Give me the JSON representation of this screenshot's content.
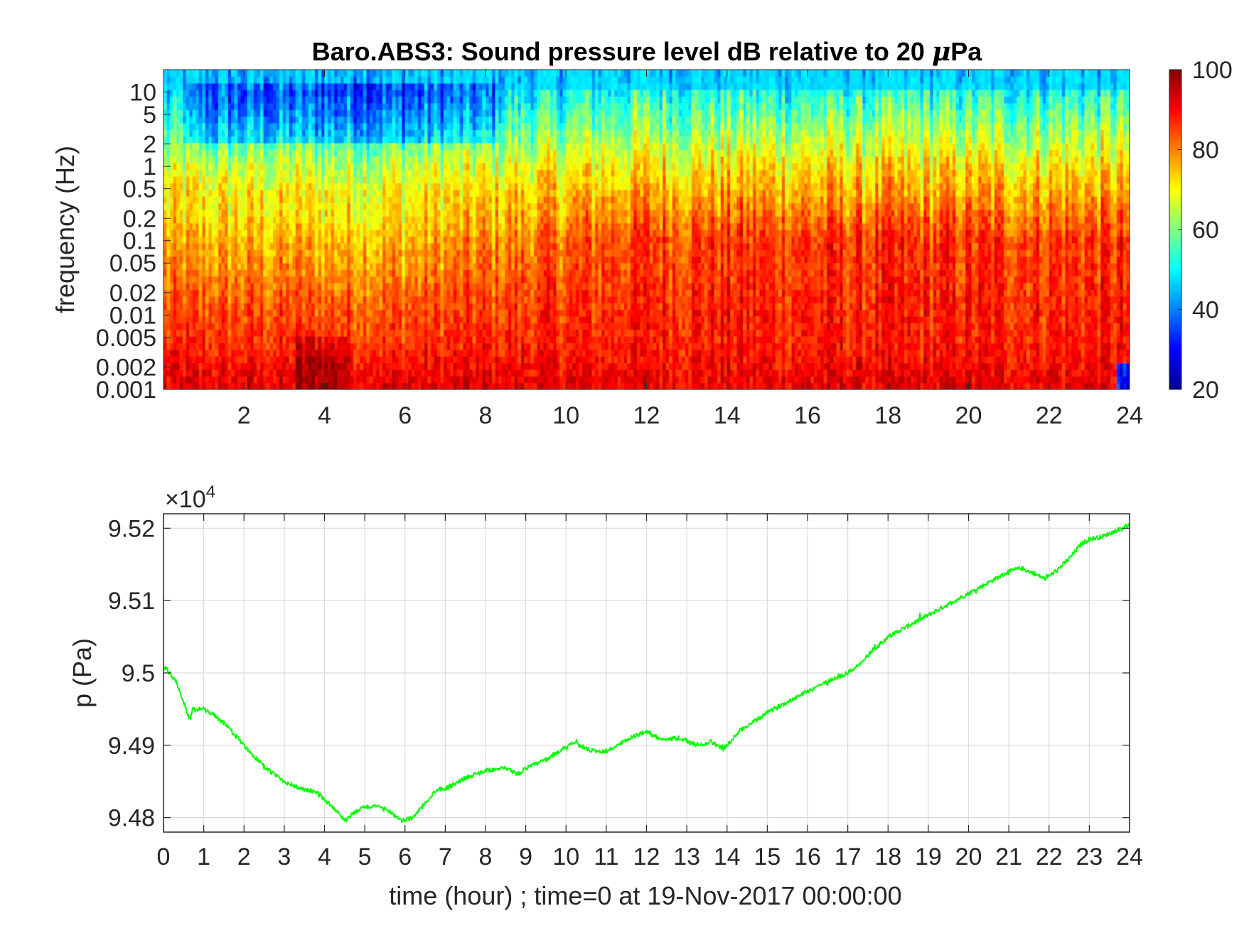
{
  "chart_data": [
    {
      "type": "heatmap",
      "title": "Baro.ABS3: Sound pressure level dB relative to 20 μPa",
      "title_main": "Baro.ABS3: Sound pressure level dB relative to 20 ",
      "title_mu": "μ",
      "title_tail": "Pa",
      "ylabel": "frequency (Hz)",
      "xlabel": "",
      "xlim": [
        0,
        24
      ],
      "ylim": [
        0.001,
        20
      ],
      "yscale": "log",
      "xticks": [
        2,
        4,
        6,
        8,
        10,
        12,
        14,
        16,
        18,
        20,
        22,
        24
      ],
      "yticks": [
        0.001,
        0.002,
        0.005,
        0.01,
        0.02,
        0.05,
        0.1,
        0.2,
        0.5,
        1,
        2,
        5,
        10
      ],
      "ytick_labels": [
        "0.001",
        "0.002",
        "0.005",
        "0.01",
        "0.02",
        "0.05",
        "0.1",
        "0.2",
        "0.5",
        "1",
        "2",
        "5",
        "10"
      ],
      "colormap": "jet",
      "clim": [
        20,
        100
      ],
      "colorbar_ticks": [
        20,
        40,
        60,
        80,
        100
      ],
      "colorbar_labels": [
        "20",
        "40",
        "60",
        "80",
        "100"
      ],
      "level_profile": {
        "frequency_hz": [
          0.001,
          0.002,
          0.005,
          0.01,
          0.02,
          0.05,
          0.1,
          0.2,
          0.5,
          1,
          2,
          5,
          10,
          20
        ],
        "typical_db_early": [
          92,
          90,
          86,
          84,
          82,
          78,
          76,
          72,
          70,
          65,
          58,
          50,
          46,
          46
        ],
        "typical_db_late": [
          92,
          90,
          88,
          88,
          87,
          86,
          86,
          82,
          76,
          72,
          66,
          58,
          52,
          48
        ]
      },
      "grid": false
    },
    {
      "type": "line",
      "title": "",
      "xlabel": "time (hour) ; time=0 at 19-Nov-2017 00:00:00",
      "ylabel": "p (Pa)",
      "xlim": [
        0,
        24
      ],
      "ylim": [
        94780,
        95220
      ],
      "xticks": [
        0,
        1,
        2,
        3,
        4,
        5,
        6,
        7,
        8,
        9,
        10,
        11,
        12,
        13,
        14,
        15,
        16,
        17,
        18,
        19,
        20,
        21,
        22,
        23,
        24
      ],
      "yticks": [
        94800,
        94900,
        95000,
        95100,
        95200
      ],
      "ytick_labels": [
        "9.48",
        "9.49",
        "9.5",
        "9.51",
        "9.52"
      ],
      "exponent_prefix": "×10",
      "exponent_power": "4",
      "grid": true,
      "series": [
        {
          "color": "#00ff00",
          "x": [
            0,
            0.3,
            0.5,
            0.65,
            0.75,
            1,
            1.3,
            1.6,
            2,
            2.5,
            3,
            3.4,
            3.8,
            4.1,
            4.3,
            4.5,
            4.7,
            5,
            5.3,
            5.6,
            5.9,
            6.2,
            6.5,
            6.8,
            7,
            7.5,
            8,
            8.5,
            8.8,
            9,
            9.5,
            10,
            10.2,
            10.5,
            10.8,
            11,
            11.3,
            11.6,
            12,
            12.2,
            12.5,
            12.8,
            13,
            13.3,
            13.6,
            13.9,
            14.1,
            14.3,
            14.6,
            15,
            15.5,
            16,
            16.5,
            17,
            17.3,
            17.6,
            18,
            18.5,
            19,
            19.5,
            20,
            20.5,
            21,
            21.3,
            21.6,
            21.9,
            22.2,
            22.5,
            22.8,
            23,
            23.3,
            23.6,
            24
          ],
          "y": [
            95010,
            94990,
            94960,
            94935,
            94950,
            94950,
            94940,
            94925,
            94900,
            94870,
            94850,
            94840,
            94835,
            94820,
            94810,
            94795,
            94805,
            94815,
            94815,
            94810,
            94795,
            94800,
            94820,
            94840,
            94840,
            94855,
            94865,
            94868,
            94860,
            94868,
            94880,
            94898,
            94905,
            94895,
            94890,
            94892,
            94900,
            94910,
            94920,
            94912,
            94908,
            94910,
            94905,
            94900,
            94905,
            94895,
            94905,
            94920,
            94930,
            94945,
            94960,
            94975,
            94988,
            95000,
            95012,
            95030,
            95050,
            95065,
            95080,
            95095,
            95110,
            95125,
            95140,
            95145,
            95138,
            95130,
            95142,
            95158,
            95178,
            95185,
            95188,
            95195,
            95205
          ]
        }
      ]
    }
  ]
}
